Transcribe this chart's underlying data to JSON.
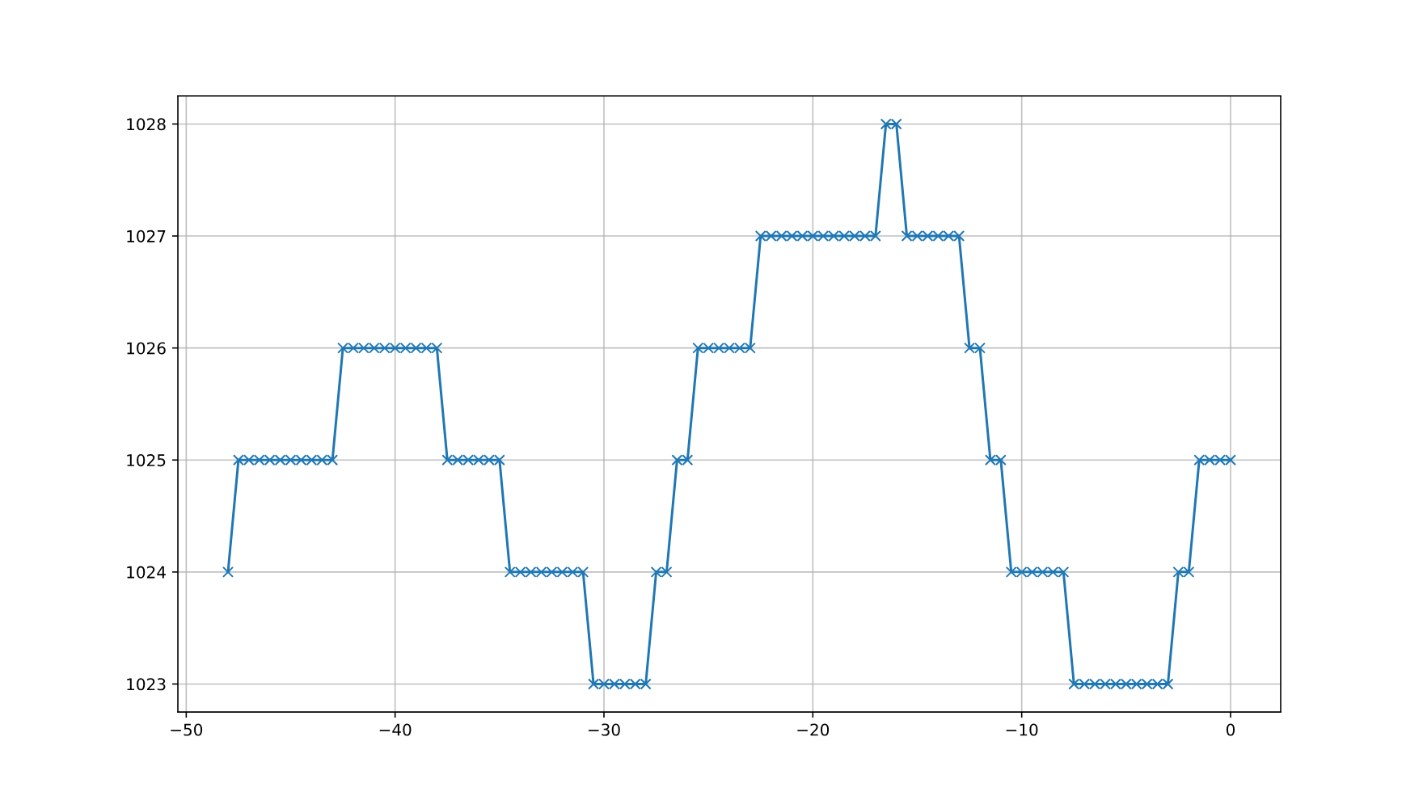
{
  "chart_data": {
    "type": "line",
    "color": "#1f77b4",
    "marker": "cross",
    "line_style": "solid",
    "grid": true,
    "x": [
      -48,
      -47.5,
      -47,
      -46.5,
      -46,
      -45.5,
      -45,
      -44.5,
      -44,
      -43.5,
      -43,
      -42.5,
      -42,
      -41.5,
      -41,
      -40.5,
      -40,
      -39.5,
      -39,
      -38.5,
      -38,
      -37.5,
      -37,
      -36.5,
      -36,
      -35.5,
      -35,
      -34.5,
      -34,
      -33.5,
      -33,
      -32.5,
      -32,
      -31.5,
      -31,
      -30.5,
      -30,
      -29.5,
      -29,
      -28.5,
      -28,
      -27.5,
      -27,
      -26.5,
      -26,
      -25.5,
      -25,
      -24.5,
      -24,
      -23.5,
      -23,
      -22.5,
      -22,
      -21.5,
      -21,
      -20.5,
      -20,
      -19.5,
      -19,
      -18.5,
      -18,
      -17.5,
      -17,
      -16.5,
      -16,
      -15.5,
      -15,
      -14.5,
      -14,
      -13.5,
      -13,
      -12.5,
      -12,
      -11.5,
      -11,
      -10.5,
      -10,
      -9.5,
      -9,
      -8.5,
      -8,
      -7.5,
      -7,
      -6.5,
      -6,
      -5.5,
      -5,
      -4.5,
      -4,
      -3.5,
      -3,
      -2.5,
      -2,
      -1.5,
      -1,
      -0.5,
      0
    ],
    "values": [
      1024,
      1025,
      1025,
      1025,
      1025,
      1025,
      1025,
      1025,
      1025,
      1025,
      1025,
      1026,
      1026,
      1026,
      1026,
      1026,
      1026,
      1026,
      1026,
      1026,
      1026,
      1025,
      1025,
      1025,
      1025,
      1025,
      1025,
      1024,
      1024,
      1024,
      1024,
      1024,
      1024,
      1024,
      1024,
      1023,
      1023,
      1023,
      1023,
      1023,
      1023,
      1024,
      1024,
      1025,
      1025,
      1026,
      1026,
      1026,
      1026,
      1026,
      1026,
      1027,
      1027,
      1027,
      1027,
      1027,
      1027,
      1027,
      1027,
      1027,
      1027,
      1027,
      1027,
      1028,
      1028,
      1027,
      1027,
      1027,
      1027,
      1027,
      1027,
      1026,
      1026,
      1025,
      1025,
      1024,
      1024,
      1024,
      1024,
      1024,
      1024,
      1023,
      1023,
      1023,
      1023,
      1023,
      1023,
      1023,
      1023,
      1023,
      1023,
      1024,
      1024,
      1025,
      1025,
      1025,
      1025
    ],
    "xlim": [
      -50.4,
      2.4
    ],
    "ylim": [
      1022.75,
      1028.25
    ],
    "xticks": [
      {
        "value": -50,
        "label": "−50"
      },
      {
        "value": -40,
        "label": "−40"
      },
      {
        "value": -30,
        "label": "−30"
      },
      {
        "value": -20,
        "label": "−20"
      },
      {
        "value": -10,
        "label": "−10"
      },
      0
    ],
    "yticks": [
      1023,
      1024,
      1025,
      1026,
      1027,
      1028
    ]
  }
}
